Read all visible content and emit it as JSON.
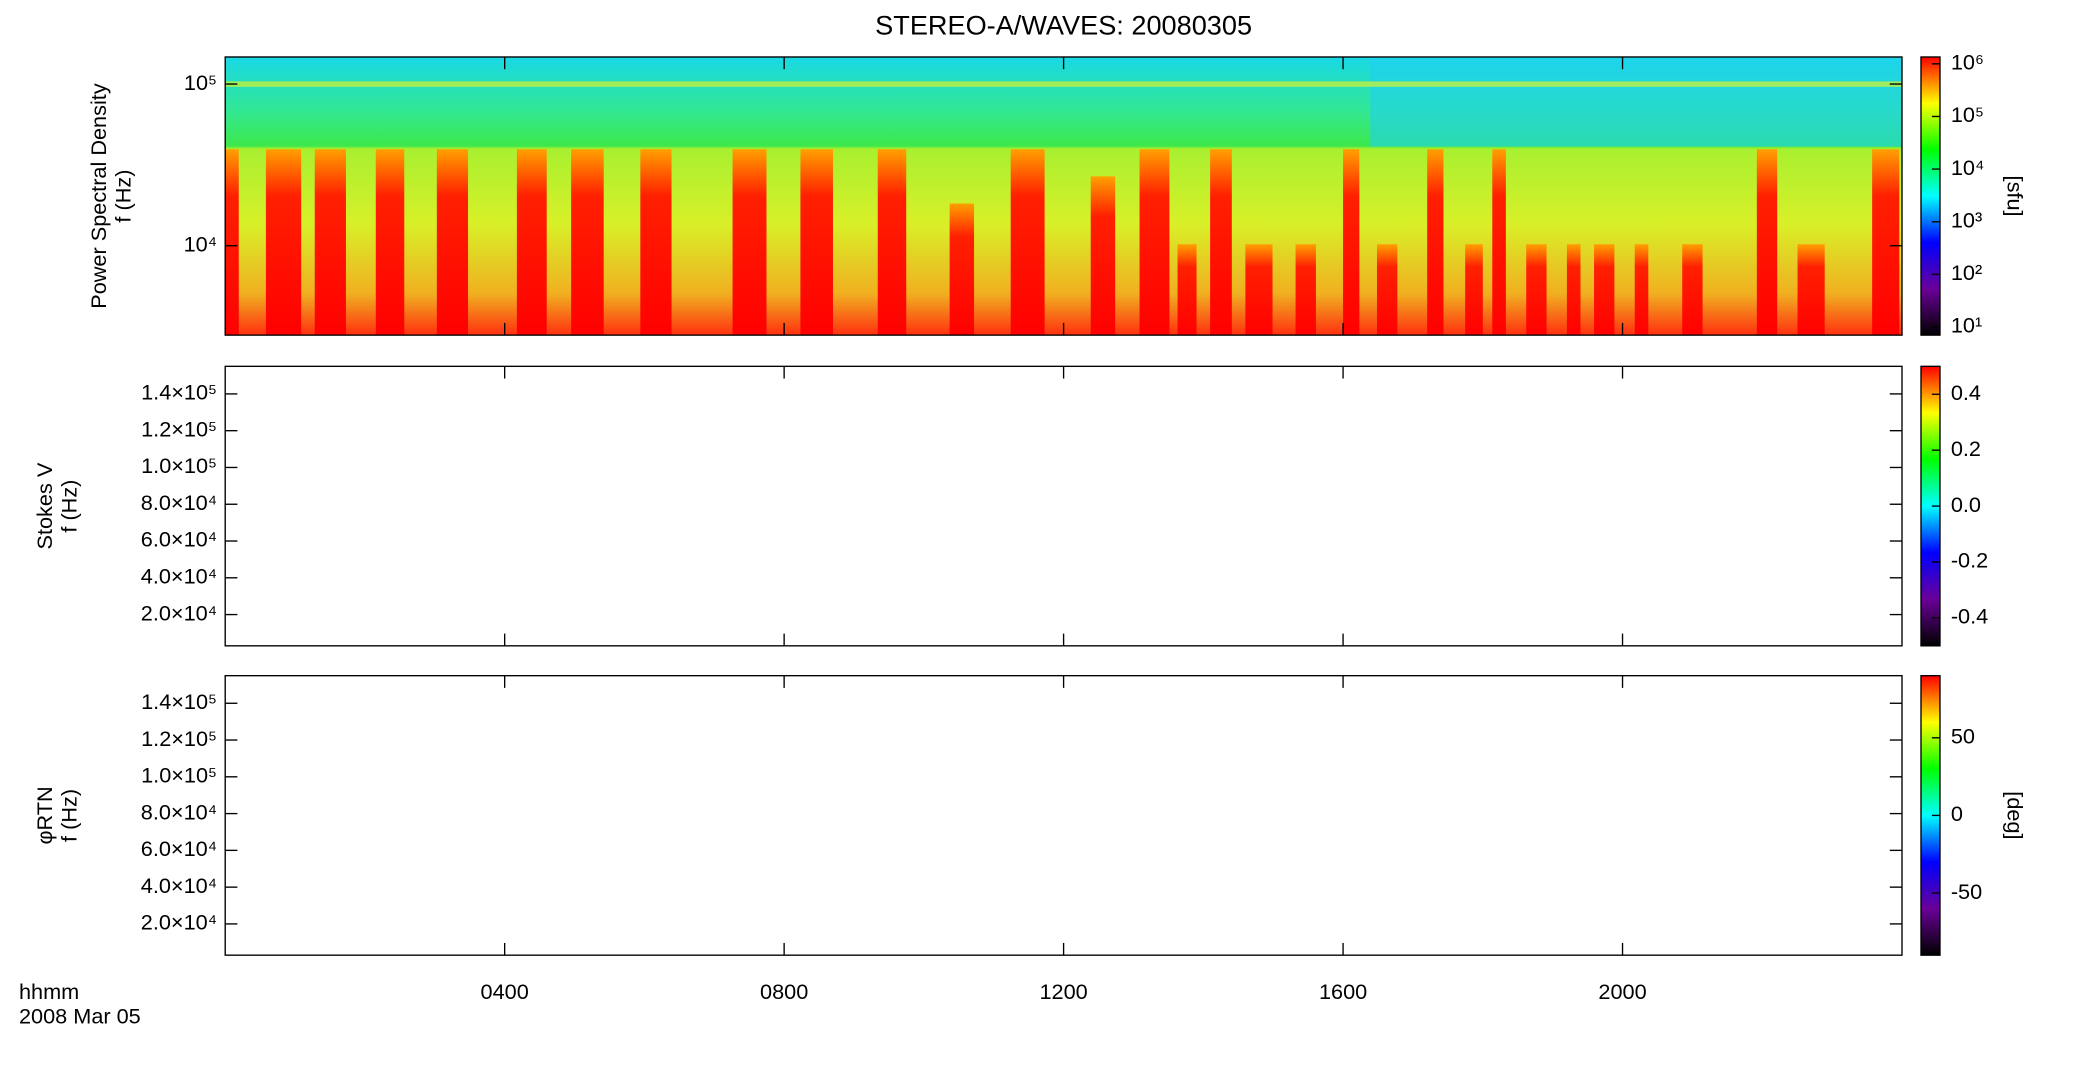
{
  "chart_data": [
    {
      "type": "spectrogram",
      "title": "STEREO-A/WAVES: 20080305",
      "ylabel": [
        "Power Spectral Density",
        "f (Hz)"
      ],
      "log": true,
      "ylim": [
        2800,
        147000
      ],
      "yticks": [
        {
          "value": 10000,
          "label": "10⁴"
        },
        {
          "value": 100000,
          "label": "10⁵"
        }
      ],
      "clim": [
        7,
        1350000
      ],
      "clog": true,
      "cticks": [
        {
          "value": 10,
          "label": "10¹"
        },
        {
          "value": 100,
          "label": "10²"
        },
        {
          "value": 1000,
          "label": "10³"
        },
        {
          "value": 10000,
          "label": "10⁴"
        },
        {
          "value": 100000,
          "label": "10⁵"
        },
        {
          "value": 1000000,
          "label": "10⁶"
        }
      ],
      "clabel": "[sfu]",
      "colormap": [
        "#000000",
        "#6a0098",
        "#0000ff",
        "#00ffff",
        "#00ff00",
        "#ffff00",
        "#ff0000"
      ]
    },
    {
      "type": "spectrogram",
      "ylabel": [
        "Stokes V",
        "f (Hz)"
      ],
      "log": false,
      "ylim": [
        3000,
        155000
      ],
      "yticks": [
        {
          "value": 20000,
          "label": "2.0×10⁴"
        },
        {
          "value": 40000,
          "label": "4.0×10⁴"
        },
        {
          "value": 60000,
          "label": "6.0×10⁴"
        },
        {
          "value": 80000,
          "label": "8.0×10⁴"
        },
        {
          "value": 100000,
          "label": "1.0×10⁵"
        },
        {
          "value": 120000,
          "label": "1.2×10⁵"
        },
        {
          "value": 140000,
          "label": "1.4×10⁵"
        }
      ],
      "clim": [
        -0.5,
        0.5
      ],
      "clog": false,
      "cticks": [
        -0.4,
        -0.2,
        {
          "value": 0,
          "label": "0.0"
        },
        0.2,
        0.4
      ],
      "colormap": [
        "#000000",
        "#6a0098",
        "#0000ff",
        "#00ffff",
        "#00ff00",
        "#ffff00",
        "#ff0000"
      ]
    },
    {
      "type": "spectrogram",
      "ylabel": [
        "φRTN",
        "f (Hz)"
      ],
      "log": false,
      "ylim": [
        3000,
        155000
      ],
      "yticks": [
        {
          "value": 20000,
          "label": "2.0×10⁴"
        },
        {
          "value": 40000,
          "label": "4.0×10⁴"
        },
        {
          "value": 60000,
          "label": "6.0×10⁴"
        },
        {
          "value": 80000,
          "label": "8.0×10⁴"
        },
        {
          "value": 100000,
          "label": "1.0×10⁵"
        },
        {
          "value": 120000,
          "label": "1.2×10⁵"
        },
        {
          "value": 140000,
          "label": "1.4×10⁵"
        }
      ],
      "clim": [
        -90,
        90
      ],
      "clog": false,
      "cticks": [
        -50,
        0,
        50
      ],
      "clabel": "[deg]",
      "colormap": [
        "#000000",
        "#6a0098",
        "#0000ff",
        "#00ffff",
        "#00ff00",
        "#ffff00",
        "#ff0000"
      ],
      "xlabel": [
        "hhmm",
        "2008 Mar 05"
      ],
      "xlim": [
        0,
        24
      ],
      "xticks": [
        {
          "value": 4,
          "label": "0400"
        },
        {
          "value": 8,
          "label": "0800"
        },
        {
          "value": 12,
          "label": "1200"
        },
        {
          "value": 16,
          "label": "1600"
        },
        {
          "value": 20,
          "label": "2000"
        }
      ]
    }
  ]
}
